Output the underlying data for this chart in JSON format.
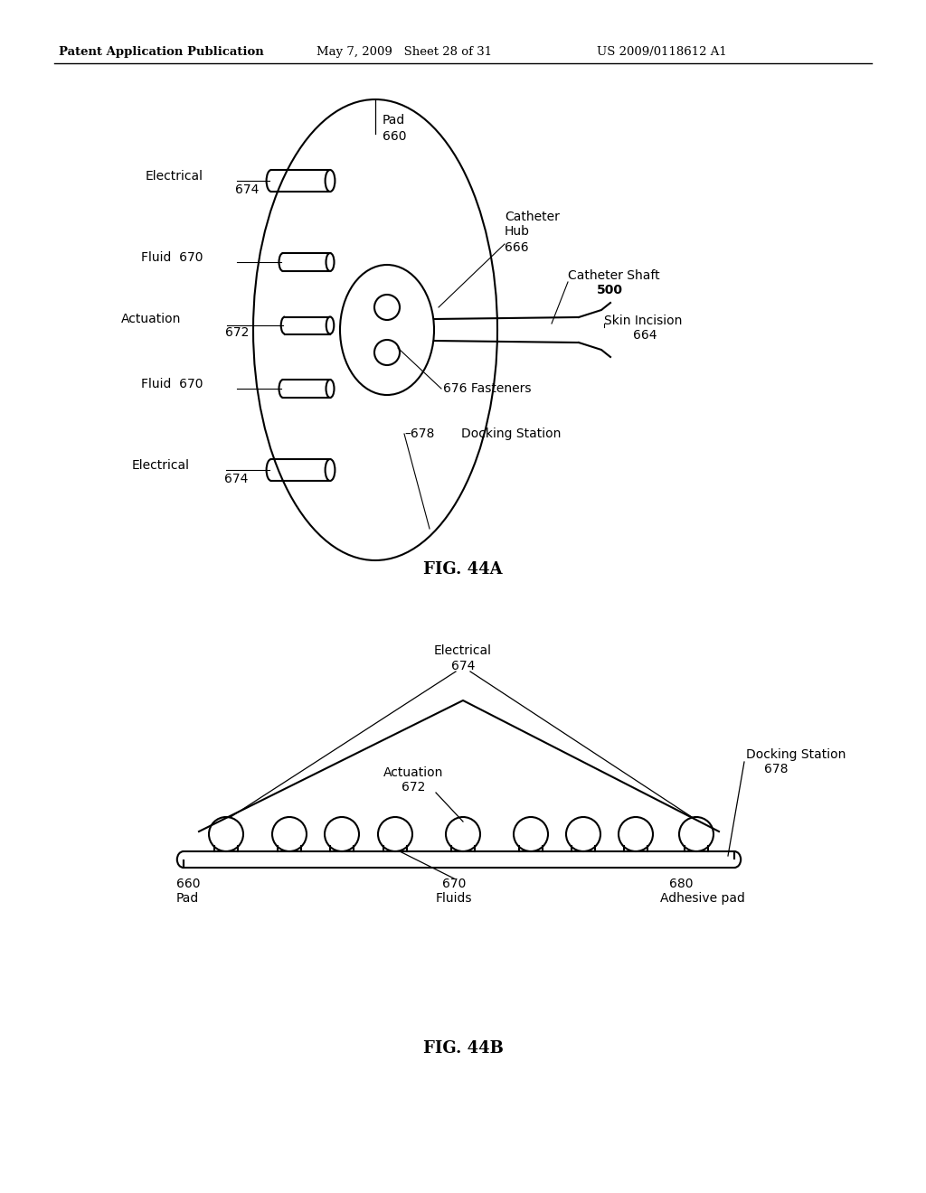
{
  "header_left": "Patent Application Publication",
  "header_mid": "May 7, 2009   Sheet 28 of 31",
  "header_right": "US 2009/0118612 A1",
  "fig_44a_label": "FIG. 44A",
  "fig_44b_label": "FIG. 44B",
  "bg_color": "#ffffff",
  "line_color": "#000000"
}
